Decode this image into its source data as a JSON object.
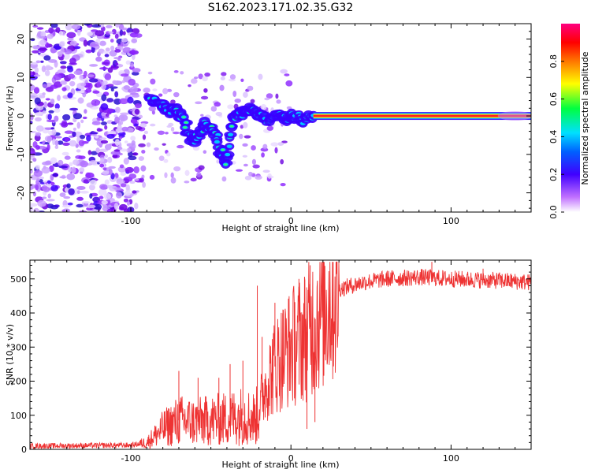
{
  "title": "S162.2023.171.02.35.G32",
  "chart_data": [
    {
      "type": "heatmap",
      "xlabel": "Height of straight line (km)",
      "ylabel": "Frequency (Hz)",
      "xlim": [
        -163,
        150
      ],
      "ylim": [
        -25,
        24
      ],
      "x_ticks": [
        -100,
        0,
        100
      ],
      "y_ticks": [
        -20,
        -10,
        0,
        10,
        20
      ],
      "colorbar": {
        "label": "Normalized spectral amplitude",
        "ticks": [
          0.0,
          0.2,
          0.4,
          0.6,
          0.8
        ],
        "tick_labels": [
          "0.0",
          "0.2",
          "0.4",
          "0.6",
          "0.8"
        ],
        "range": [
          0,
          1
        ],
        "colors": [
          "#ffffff",
          "#b040ff",
          "#0000ff",
          "#00e0ff",
          "#00ff40",
          "#ffff00",
          "#ff0000",
          "#ff0080"
        ]
      },
      "ridge": {
        "description_free": true,
        "points": [
          [
            -88,
            5
          ],
          [
            -82,
            3
          ],
          [
            -76,
            1
          ],
          [
            -72,
            2
          ],
          [
            -67,
            -1
          ],
          [
            -62,
            -7
          ],
          [
            -58,
            -5
          ],
          [
            -53,
            -2
          ],
          [
            -48,
            -4
          ],
          [
            -44,
            -9
          ],
          [
            -40,
            -12
          ],
          [
            -36,
            -1
          ],
          [
            -30,
            1
          ],
          [
            -25,
            2
          ],
          [
            -20,
            0
          ],
          [
            -14,
            -1
          ],
          [
            -8,
            0
          ],
          [
            -3,
            -1
          ],
          [
            2,
            0
          ],
          [
            8,
            -1
          ],
          [
            14,
            0
          ],
          [
            20,
            0
          ],
          [
            60,
            0
          ],
          [
            100,
            0
          ],
          [
            140,
            0
          ],
          [
            148,
            0
          ]
        ],
        "strong_from_x": 14,
        "value_after": 1.0
      },
      "grid": false
    },
    {
      "type": "line",
      "xlabel": "Height of straight line (km)",
      "ylabel": "SNR (10 * v/v)",
      "xlim": [
        -163,
        150
      ],
      "ylim": [
        0,
        555
      ],
      "x_ticks": [
        -100,
        0,
        100
      ],
      "y_ticks": [
        0,
        100,
        200,
        300,
        400,
        500
      ],
      "color": "#ee3333",
      "envelope": [
        {
          "x": -163,
          "y": 10
        },
        {
          "x": -100,
          "y": 12
        },
        {
          "x": -90,
          "y": 20
        },
        {
          "x": -80,
          "y": 60
        },
        {
          "x": -70,
          "y": 85
        },
        {
          "x": -60,
          "y": 80
        },
        {
          "x": -50,
          "y": 85
        },
        {
          "x": -40,
          "y": 90
        },
        {
          "x": -30,
          "y": 100
        },
        {
          "x": -22,
          "y": 90
        },
        {
          "x": -15,
          "y": 200
        },
        {
          "x": -8,
          "y": 260
        },
        {
          "x": 0,
          "y": 300
        },
        {
          "x": 8,
          "y": 330
        },
        {
          "x": 15,
          "y": 380
        },
        {
          "x": 22,
          "y": 430
        },
        {
          "x": 30,
          "y": 470
        },
        {
          "x": 45,
          "y": 490
        },
        {
          "x": 60,
          "y": 500
        },
        {
          "x": 80,
          "y": 505
        },
        {
          "x": 100,
          "y": 500
        },
        {
          "x": 130,
          "y": 495
        },
        {
          "x": 150,
          "y": 490
        }
      ],
      "spikes": [
        {
          "x": -70,
          "y": 230
        },
        {
          "x": -58,
          "y": 210
        },
        {
          "x": -45,
          "y": 210
        },
        {
          "x": -38,
          "y": 250
        },
        {
          "x": -30,
          "y": 260
        },
        {
          "x": -21,
          "y": 480
        },
        {
          "x": -18,
          "y": 330
        },
        {
          "x": -10,
          "y": 430
        },
        {
          "x": -5,
          "y": 410
        },
        {
          "x": 5,
          "y": 500
        },
        {
          "x": 12,
          "y": 540
        },
        {
          "x": 15,
          "y": 80
        },
        {
          "x": 88,
          "y": 550
        },
        {
          "x": 120,
          "y": 530
        }
      ],
      "dips": [
        {
          "x": -22,
          "y": 20
        },
        {
          "x": 10,
          "y": 60
        },
        {
          "x": -12,
          "y": 150
        }
      ],
      "grid": false
    }
  ]
}
